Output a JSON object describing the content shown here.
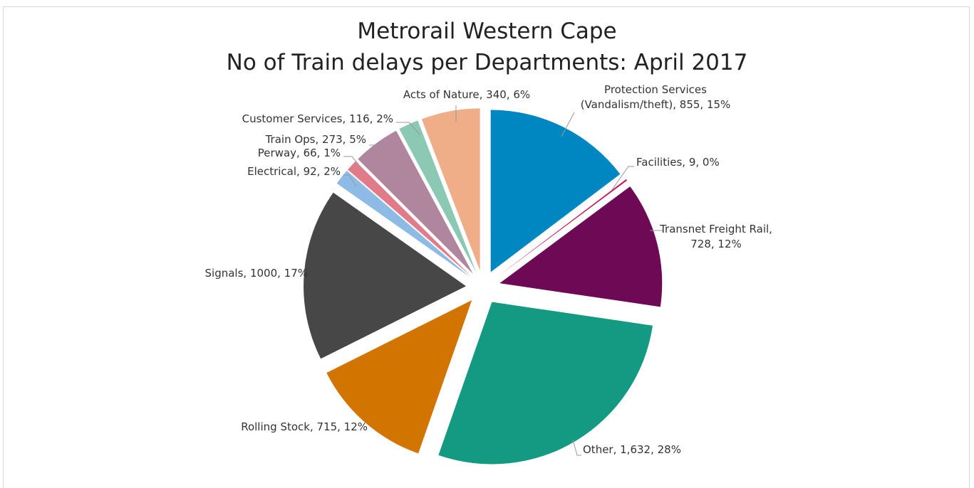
{
  "chart_data": {
    "type": "pie",
    "title": "Metrorail Western Cape",
    "subtitle": "No of Train delays per Departments: April 2017",
    "values": [
      855,
      9,
      728,
      1632,
      715,
      1000,
      92,
      66,
      273,
      116,
      340
    ],
    "value_labels": [
      "Protection Services (Vandalism/theft), 855, 15%",
      "Facilities, 9, 0%",
      "Transnet Freight Rail, 728, 12%",
      "Other, 1,632, 28%",
      "Rolling Stock, 715, 12%",
      "Signals, 1000, 17%",
      "Electrical, 92, 2%",
      "Perway, 66, 1%",
      "Train Ops, 273, 5%",
      "Customer Services, 116, 2%",
      "Acts of Nature, 340, 6%"
    ],
    "colors": [
      "#0087c1",
      "#c8195a",
      "#6e0a55",
      "#149a82",
      "#d27400",
      "#474747",
      "#8dbbe6",
      "#e17b8a",
      "#b0869f",
      "#8cc9b5",
      "#f0ae88"
    ]
  }
}
